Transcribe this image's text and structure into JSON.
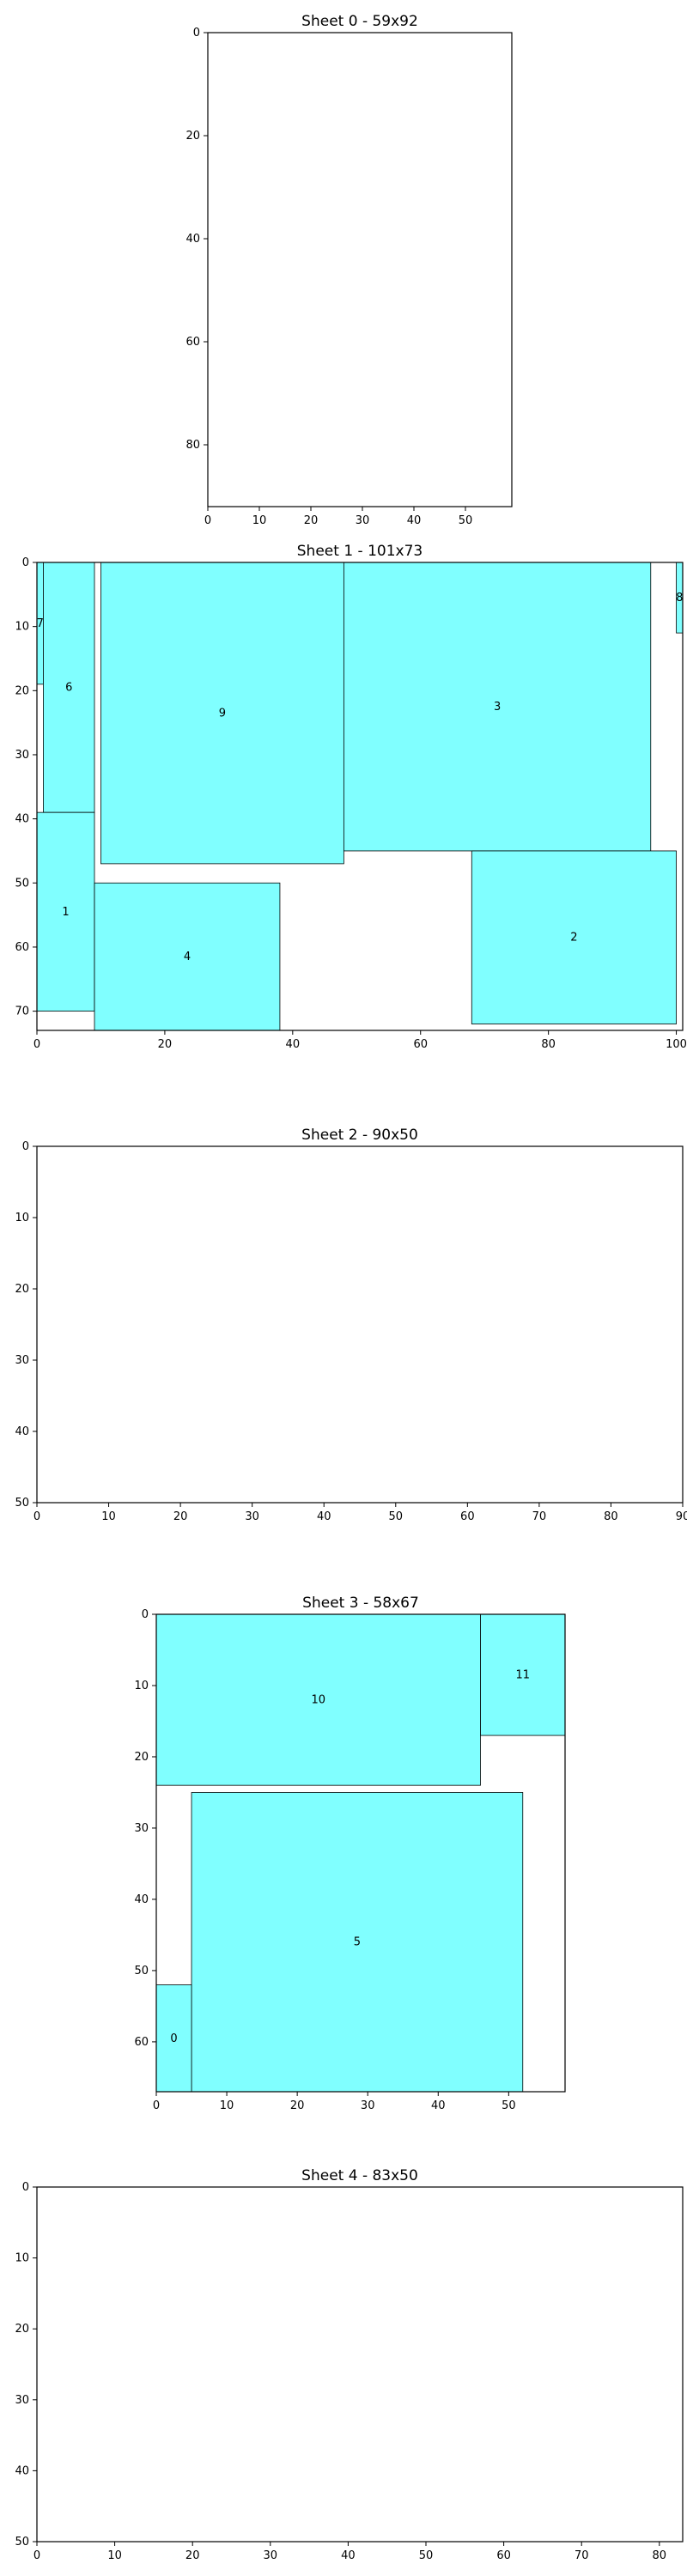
{
  "chart_data": [
    {
      "type": "sheet-layout",
      "title": "Sheet 0 - 59x92",
      "sheet_width": 59,
      "sheet_height": 92,
      "xlim": [
        0,
        59
      ],
      "ylim": [
        0,
        92
      ],
      "xticks": [
        0,
        10,
        20,
        30,
        40,
        50
      ],
      "yticks": [
        0,
        20,
        40,
        60,
        80
      ],
      "rects": []
    },
    {
      "type": "sheet-layout",
      "title": "Sheet 1 - 101x73",
      "sheet_width": 101,
      "sheet_height": 73,
      "xlim": [
        0,
        101
      ],
      "ylim": [
        0,
        73
      ],
      "xticks": [
        0,
        20,
        40,
        60,
        80,
        100
      ],
      "yticks": [
        0,
        10,
        20,
        30,
        40,
        50,
        60,
        70
      ],
      "rects": [
        {
          "id": "7",
          "x": 0,
          "y": 0,
          "w": 1,
          "h": 19
        },
        {
          "id": "6",
          "x": 1,
          "y": 0,
          "w": 8,
          "h": 39
        },
        {
          "id": "1",
          "x": 0,
          "y": 39,
          "w": 9,
          "h": 31
        },
        {
          "id": "9",
          "x": 10,
          "y": 0,
          "w": 38,
          "h": 47
        },
        {
          "id": "4",
          "x": 9,
          "y": 50,
          "w": 29,
          "h": 23
        },
        {
          "id": "3",
          "x": 48,
          "y": 0,
          "w": 48,
          "h": 45
        },
        {
          "id": "2",
          "x": 68,
          "y": 45,
          "w": 32,
          "h": 27
        },
        {
          "id": "8",
          "x": 100,
          "y": 0,
          "w": 1,
          "h": 11
        }
      ]
    },
    {
      "type": "sheet-layout",
      "title": "Sheet 2 - 90x50",
      "sheet_width": 90,
      "sheet_height": 50,
      "xlim": [
        0,
        90
      ],
      "ylim": [
        0,
        50
      ],
      "xticks": [
        0,
        10,
        20,
        30,
        40,
        50,
        60,
        70,
        80,
        90
      ],
      "yticks": [
        0,
        10,
        20,
        30,
        40,
        50
      ],
      "rects": []
    },
    {
      "type": "sheet-layout",
      "title": "Sheet 3 - 58x67",
      "sheet_width": 58,
      "sheet_height": 67,
      "xlim": [
        0,
        58
      ],
      "ylim": [
        0,
        67
      ],
      "xticks": [
        0,
        10,
        20,
        30,
        40,
        50
      ],
      "yticks": [
        0,
        10,
        20,
        30,
        40,
        50,
        60
      ],
      "rects": [
        {
          "id": "10",
          "x": 0,
          "y": 0,
          "w": 46,
          "h": 24
        },
        {
          "id": "11",
          "x": 46,
          "y": 0,
          "w": 12,
          "h": 17
        },
        {
          "id": "5",
          "x": 5,
          "y": 25,
          "w": 47,
          "h": 42
        },
        {
          "id": "0",
          "x": 0,
          "y": 52,
          "w": 5,
          "h": 15
        }
      ]
    },
    {
      "type": "sheet-layout",
      "title": "Sheet 4 - 83x50",
      "sheet_width": 83,
      "sheet_height": 50,
      "xlim": [
        0,
        83
      ],
      "ylim": [
        0,
        50
      ],
      "xticks": [
        0,
        10,
        20,
        30,
        40,
        50,
        60,
        70,
        80
      ],
      "yticks": [
        0,
        10,
        20,
        30,
        40,
        50
      ],
      "rects": []
    }
  ],
  "style": {
    "fill": "#80ffff",
    "edge": "#000000",
    "axes": "#000000"
  }
}
